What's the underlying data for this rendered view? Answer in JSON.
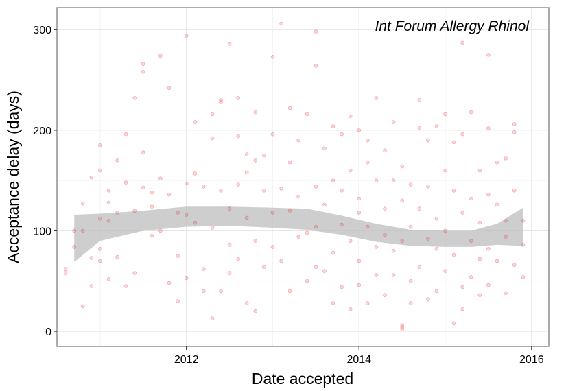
{
  "chart_data": {
    "type": "scatter",
    "title": "",
    "annotation": "Int Forum Allergy Rhinol",
    "xlabel": "Date accepted",
    "ylabel": "Acceptance delay (days)",
    "x_ticks": [
      "2012",
      "2014",
      "2016"
    ],
    "y_ticks": [
      0,
      100,
      200,
      300
    ],
    "xlim": [
      2010.5,
      2016.2
    ],
    "ylim": [
      -15,
      322
    ],
    "grid": true,
    "point_color": "#e8262a",
    "band_color": "#bdbdbd",
    "smooth_upper": [
      [
        2010.7,
        116
      ],
      [
        2011.0,
        117
      ],
      [
        2011.5,
        120
      ],
      [
        2012.0,
        124
      ],
      [
        2012.5,
        124
      ],
      [
        2013.0,
        123
      ],
      [
        2013.4,
        122
      ],
      [
        2013.8,
        115
      ],
      [
        2014.2,
        107
      ],
      [
        2014.6,
        101
      ],
      [
        2015.0,
        100
      ],
      [
        2015.3,
        100
      ],
      [
        2015.6,
        107
      ],
      [
        2015.9,
        123
      ]
    ],
    "smooth_lower": [
      [
        2010.7,
        69
      ],
      [
        2011.0,
        90
      ],
      [
        2011.5,
        100
      ],
      [
        2012.0,
        104
      ],
      [
        2012.5,
        105
      ],
      [
        2013.0,
        103
      ],
      [
        2013.4,
        101
      ],
      [
        2013.8,
        96
      ],
      [
        2014.2,
        89
      ],
      [
        2014.6,
        85
      ],
      [
        2015.0,
        84
      ],
      [
        2015.3,
        84
      ],
      [
        2015.6,
        86
      ],
      [
        2015.9,
        85
      ]
    ],
    "points": [
      [
        2010.6,
        62
      ],
      [
        2010.6,
        58
      ],
      [
        2010.7,
        100
      ],
      [
        2010.7,
        84
      ],
      [
        2010.8,
        25
      ],
      [
        2010.8,
        127
      ],
      [
        2010.8,
        100
      ],
      [
        2010.9,
        45
      ],
      [
        2010.9,
        153
      ],
      [
        2010.9,
        73
      ],
      [
        2011.0,
        185
      ],
      [
        2011.0,
        160
      ],
      [
        2011.0,
        112
      ],
      [
        2011.0,
        82
      ],
      [
        2011.0,
        70
      ],
      [
        2011.1,
        110
      ],
      [
        2011.1,
        128
      ],
      [
        2011.1,
        140
      ],
      [
        2011.1,
        52
      ],
      [
        2011.2,
        170
      ],
      [
        2011.2,
        118
      ],
      [
        2011.2,
        74
      ],
      [
        2011.3,
        196
      ],
      [
        2011.3,
        148
      ],
      [
        2011.3,
        45
      ],
      [
        2011.4,
        232
      ],
      [
        2011.4,
        120
      ],
      [
        2011.4,
        58
      ],
      [
        2011.5,
        266
      ],
      [
        2011.5,
        258
      ],
      [
        2011.5,
        178
      ],
      [
        2011.5,
        143
      ],
      [
        2011.6,
        138
      ],
      [
        2011.6,
        124
      ],
      [
        2011.6,
        95
      ],
      [
        2011.7,
        274
      ],
      [
        2011.7,
        152
      ],
      [
        2011.7,
        100
      ],
      [
        2011.8,
        242
      ],
      [
        2011.8,
        136
      ],
      [
        2011.8,
        48
      ],
      [
        2011.9,
        118
      ],
      [
        2011.9,
        75
      ],
      [
        2011.9,
        30
      ],
      [
        2012.0,
        294
      ],
      [
        2012.0,
        147
      ],
      [
        2012.0,
        116
      ],
      [
        2012.0,
        53
      ],
      [
        2012.1,
        208
      ],
      [
        2012.1,
        157
      ],
      [
        2012.1,
        108
      ],
      [
        2012.2,
        144
      ],
      [
        2012.2,
        62
      ],
      [
        2012.2,
        40
      ],
      [
        2012.3,
        216
      ],
      [
        2012.3,
        192
      ],
      [
        2012.3,
        103
      ],
      [
        2012.3,
        13
      ],
      [
        2012.4,
        230
      ],
      [
        2012.4,
        228
      ],
      [
        2012.4,
        140
      ],
      [
        2012.4,
        40
      ],
      [
        2012.5,
        286
      ],
      [
        2012.5,
        122
      ],
      [
        2012.5,
        86
      ],
      [
        2012.5,
        58
      ],
      [
        2012.6,
        232
      ],
      [
        2012.6,
        194
      ],
      [
        2012.6,
        146
      ],
      [
        2012.6,
        72
      ],
      [
        2012.7,
        176
      ],
      [
        2012.7,
        158
      ],
      [
        2012.7,
        113
      ],
      [
        2012.7,
        28
      ],
      [
        2012.8,
        218
      ],
      [
        2012.8,
        170
      ],
      [
        2012.8,
        90
      ],
      [
        2012.8,
        20
      ],
      [
        2012.9,
        175
      ],
      [
        2012.9,
        140
      ],
      [
        2012.9,
        64
      ],
      [
        2013.0,
        273
      ],
      [
        2013.0,
        196
      ],
      [
        2013.0,
        118
      ],
      [
        2013.0,
        84
      ],
      [
        2013.1,
        306
      ],
      [
        2013.1,
        142
      ],
      [
        2013.1,
        70
      ],
      [
        2013.2,
        222
      ],
      [
        2013.2,
        168
      ],
      [
        2013.2,
        120
      ],
      [
        2013.2,
        40
      ],
      [
        2013.3,
        190
      ],
      [
        2013.3,
        134
      ],
      [
        2013.3,
        94
      ],
      [
        2013.4,
        216
      ],
      [
        2013.4,
        98
      ],
      [
        2013.4,
        50
      ],
      [
        2013.5,
        298
      ],
      [
        2013.5,
        264
      ],
      [
        2013.5,
        144
      ],
      [
        2013.5,
        104
      ],
      [
        2013.5,
        64
      ],
      [
        2013.6,
        182
      ],
      [
        2013.6,
        126
      ],
      [
        2013.6,
        60
      ],
      [
        2013.7,
        204
      ],
      [
        2013.7,
        150
      ],
      [
        2013.7,
        78
      ],
      [
        2013.7,
        28
      ],
      [
        2013.8,
        196
      ],
      [
        2013.8,
        140
      ],
      [
        2013.8,
        106
      ],
      [
        2013.8,
        44
      ],
      [
        2013.9,
        214
      ],
      [
        2013.9,
        160
      ],
      [
        2013.9,
        90
      ],
      [
        2013.9,
        22
      ],
      [
        2014.0,
        200
      ],
      [
        2014.0,
        132
      ],
      [
        2014.0,
        70
      ],
      [
        2014.0,
        46
      ],
      [
        2014.0,
        118
      ],
      [
        2014.1,
        190
      ],
      [
        2014.1,
        168
      ],
      [
        2014.1,
        104
      ],
      [
        2014.1,
        28
      ],
      [
        2014.2,
        232
      ],
      [
        2014.2,
        150
      ],
      [
        2014.2,
        84
      ],
      [
        2014.2,
        56
      ],
      [
        2014.3,
        180
      ],
      [
        2014.3,
        122
      ],
      [
        2014.3,
        96
      ],
      [
        2014.3,
        36
      ],
      [
        2014.4,
        208
      ],
      [
        2014.4,
        150
      ],
      [
        2014.4,
        80
      ],
      [
        2014.4,
        56
      ],
      [
        2014.5,
        164
      ],
      [
        2014.5,
        130
      ],
      [
        2014.5,
        90
      ],
      [
        2014.5,
        4
      ],
      [
        2014.5,
        2
      ],
      [
        2014.5,
        6
      ],
      [
        2014.6,
        146
      ],
      [
        2014.6,
        104
      ],
      [
        2014.6,
        50
      ],
      [
        2014.6,
        28
      ],
      [
        2014.7,
        230
      ],
      [
        2014.7,
        202
      ],
      [
        2014.7,
        122
      ],
      [
        2014.7,
        64
      ],
      [
        2014.8,
        190
      ],
      [
        2014.8,
        144
      ],
      [
        2014.8,
        92
      ],
      [
        2014.8,
        32
      ],
      [
        2014.9,
        204
      ],
      [
        2014.9,
        112
      ],
      [
        2014.9,
        82
      ],
      [
        2014.9,
        40
      ],
      [
        2015.0,
        216
      ],
      [
        2015.0,
        160
      ],
      [
        2015.0,
        100
      ],
      [
        2015.0,
        60
      ],
      [
        2015.1,
        188
      ],
      [
        2015.1,
        140
      ],
      [
        2015.1,
        76
      ],
      [
        2015.1,
        8
      ],
      [
        2015.2,
        287
      ],
      [
        2015.2,
        196
      ],
      [
        2015.2,
        118
      ],
      [
        2015.2,
        44
      ],
      [
        2015.2,
        22
      ],
      [
        2015.3,
        218
      ],
      [
        2015.3,
        132
      ],
      [
        2015.3,
        90
      ],
      [
        2015.3,
        54
      ],
      [
        2015.4,
        160
      ],
      [
        2015.4,
        108
      ],
      [
        2015.4,
        36
      ],
      [
        2015.4,
        72
      ],
      [
        2015.5,
        275
      ],
      [
        2015.5,
        202
      ],
      [
        2015.5,
        136
      ],
      [
        2015.5,
        82
      ],
      [
        2015.5,
        46
      ],
      [
        2015.6,
        168
      ],
      [
        2015.6,
        126
      ],
      [
        2015.6,
        70
      ],
      [
        2015.7,
        172
      ],
      [
        2015.7,
        110
      ],
      [
        2015.7,
        94
      ],
      [
        2015.7,
        38
      ],
      [
        2015.8,
        206
      ],
      [
        2015.8,
        198
      ],
      [
        2015.8,
        140
      ],
      [
        2015.8,
        66
      ],
      [
        2015.9,
        110
      ],
      [
        2015.9,
        86
      ],
      [
        2015.9,
        54
      ]
    ]
  }
}
